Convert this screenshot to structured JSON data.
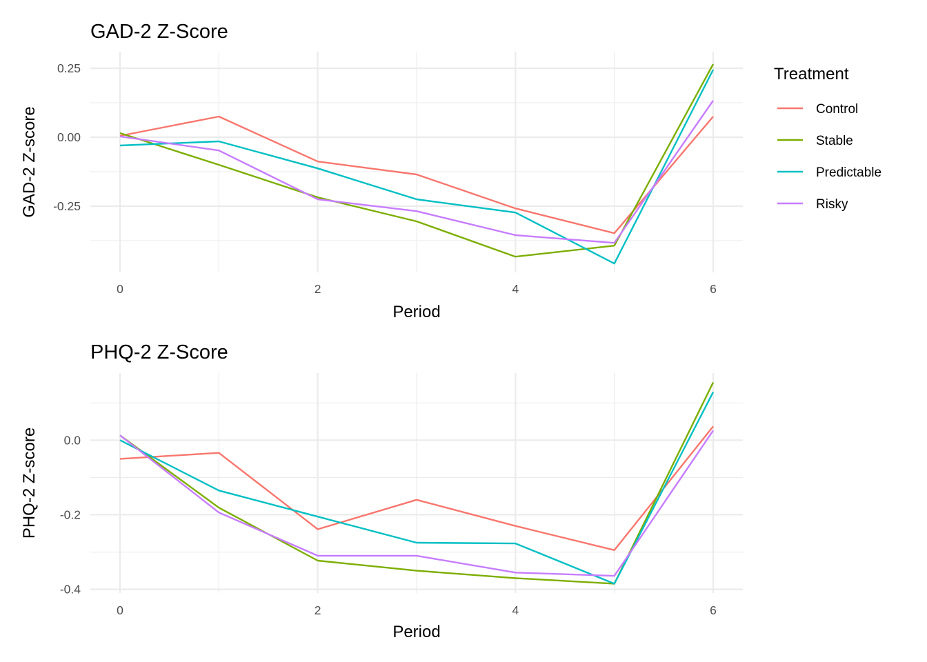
{
  "chart_data": [
    {
      "type": "line",
      "title": "GAD-2 Z-Score",
      "xlabel": "Period",
      "ylabel": "GAD-2 Z-score",
      "x": [
        0,
        1,
        2,
        3,
        4,
        5,
        6
      ],
      "xticks": [
        0,
        2,
        4,
        6
      ],
      "xtick_labels": [
        "0",
        "2",
        "4",
        "6"
      ],
      "yticks": [
        0.25,
        0.0,
        -0.25
      ],
      "ytick_labels": [
        "0.25",
        "0.00",
        "-0.25"
      ],
      "xlim": [
        -0.3,
        6.3
      ],
      "ylim": [
        -0.49,
        0.31
      ],
      "grid": true,
      "series": [
        {
          "name": "Control",
          "values": [
            0.005,
            0.075,
            -0.088,
            -0.135,
            -0.258,
            -0.348,
            0.075
          ]
        },
        {
          "name": "Stable",
          "values": [
            0.015,
            -0.1,
            -0.218,
            -0.305,
            -0.433,
            -0.393,
            0.265
          ]
        },
        {
          "name": "Predictable",
          "values": [
            -0.03,
            -0.015,
            -0.113,
            -0.225,
            -0.273,
            -0.458,
            0.245
          ]
        },
        {
          "name": "Risky",
          "values": [
            0.003,
            -0.048,
            -0.225,
            -0.268,
            -0.355,
            -0.383,
            0.133
          ]
        }
      ]
    },
    {
      "type": "line",
      "title": "PHQ-2 Z-Score",
      "xlabel": "Period",
      "ylabel": "PHQ-2 Z-score",
      "x": [
        0,
        1,
        2,
        3,
        4,
        5,
        6
      ],
      "xticks": [
        0,
        2,
        4,
        6
      ],
      "xtick_labels": [
        "0",
        "2",
        "4",
        "6"
      ],
      "yticks": [
        0.0,
        -0.2,
        -0.4
      ],
      "ytick_labels": [
        "0.0",
        "-0.2",
        "-0.4"
      ],
      "xlim": [
        -0.3,
        6.3
      ],
      "ylim": [
        -0.41,
        0.18
      ],
      "grid": true,
      "series": [
        {
          "name": "Control",
          "values": [
            -0.05,
            -0.034,
            -0.239,
            -0.16,
            -0.23,
            -0.295,
            0.037
          ]
        },
        {
          "name": "Stable",
          "values": [
            0.013,
            -0.181,
            -0.323,
            -0.35,
            -0.37,
            -0.385,
            0.155
          ]
        },
        {
          "name": "Predictable",
          "values": [
            0.0,
            -0.135,
            -0.205,
            -0.275,
            -0.277,
            -0.385,
            0.129
          ]
        },
        {
          "name": "Risky",
          "values": [
            0.013,
            -0.194,
            -0.31,
            -0.31,
            -0.355,
            -0.364,
            0.026
          ]
        }
      ]
    }
  ],
  "legend": {
    "title": "Treatment",
    "placement": "right",
    "items": [
      {
        "name": "Control",
        "color": "#F8766D"
      },
      {
        "name": "Stable",
        "color": "#7CAE00"
      },
      {
        "name": "Predictable",
        "color": "#00BFC4"
      },
      {
        "name": "Risky",
        "color": "#C77CFF"
      }
    ]
  }
}
